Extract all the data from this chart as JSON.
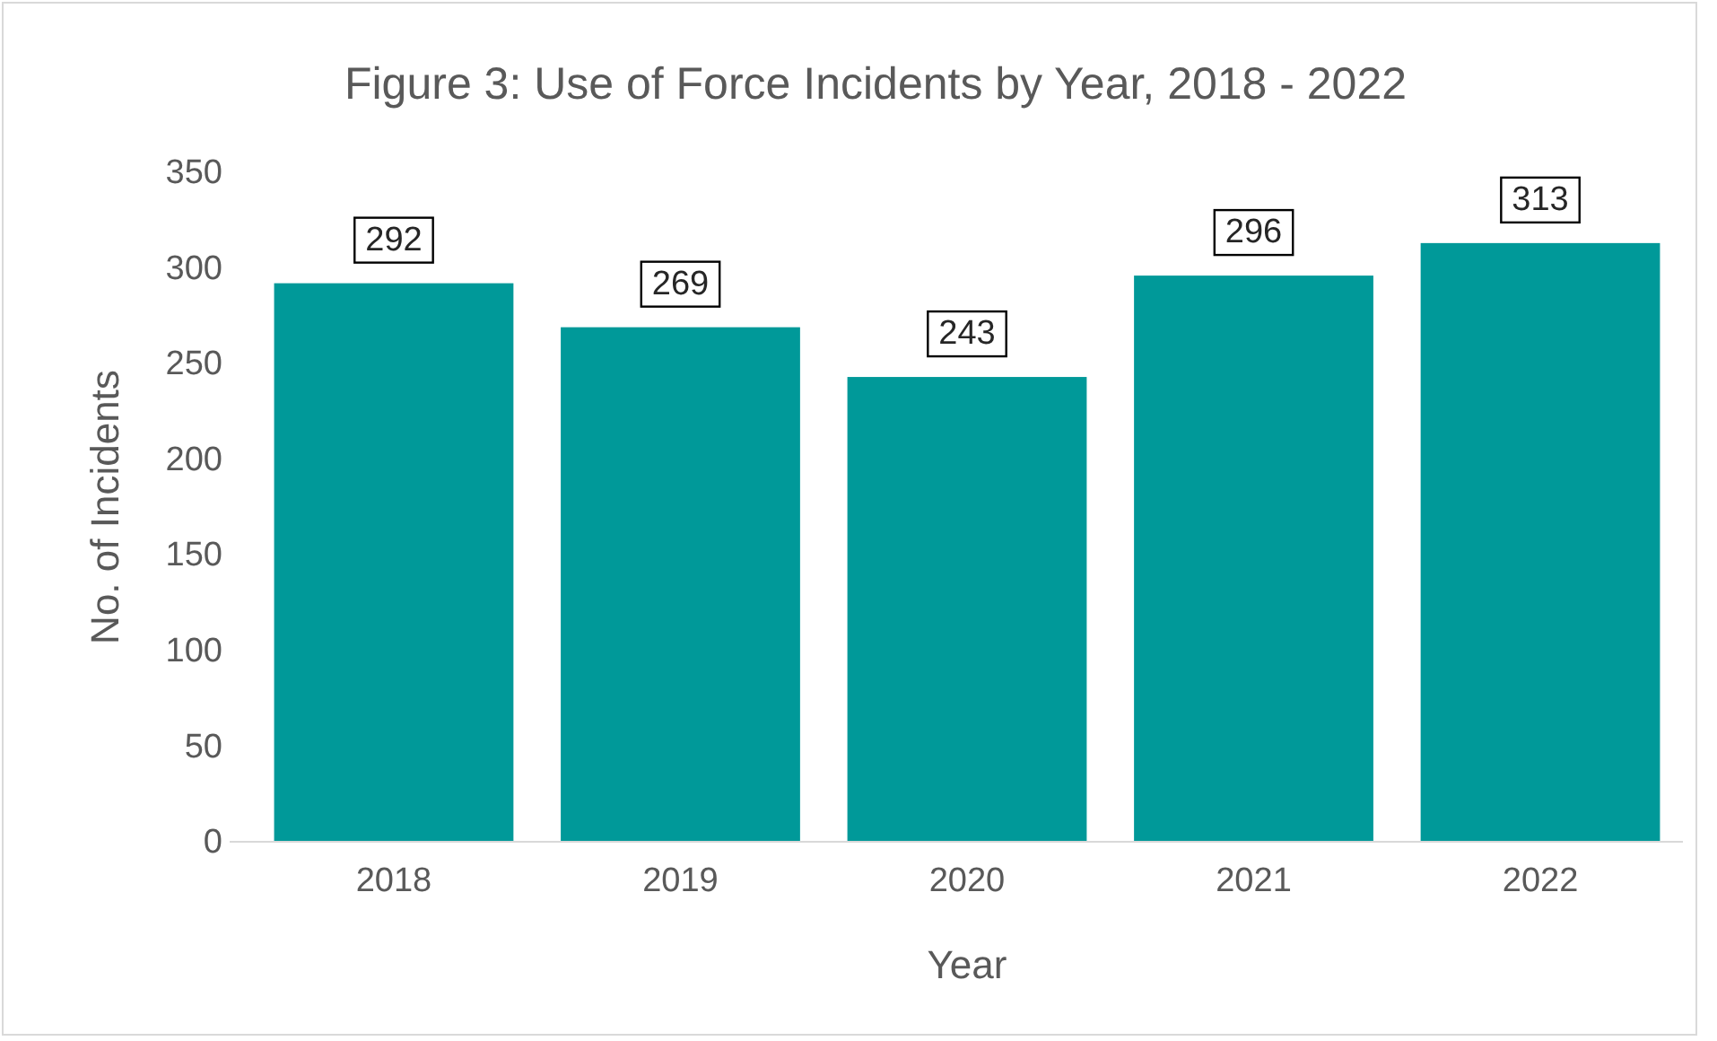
{
  "chart_data": {
    "type": "bar",
    "title": "Figure 3: Use of Force Incidents by Year, 2018 - 2022",
    "xlabel": "Year",
    "ylabel": "No. of Incidents",
    "categories": [
      "2018",
      "2019",
      "2020",
      "2021",
      "2022"
    ],
    "values": [
      292,
      269,
      243,
      296,
      313
    ],
    "color": "#009999",
    "ylim": [
      0,
      350
    ],
    "yticks": [
      0,
      50,
      100,
      150,
      200,
      250,
      300,
      350
    ],
    "grid": false,
    "data_labels": true
  }
}
